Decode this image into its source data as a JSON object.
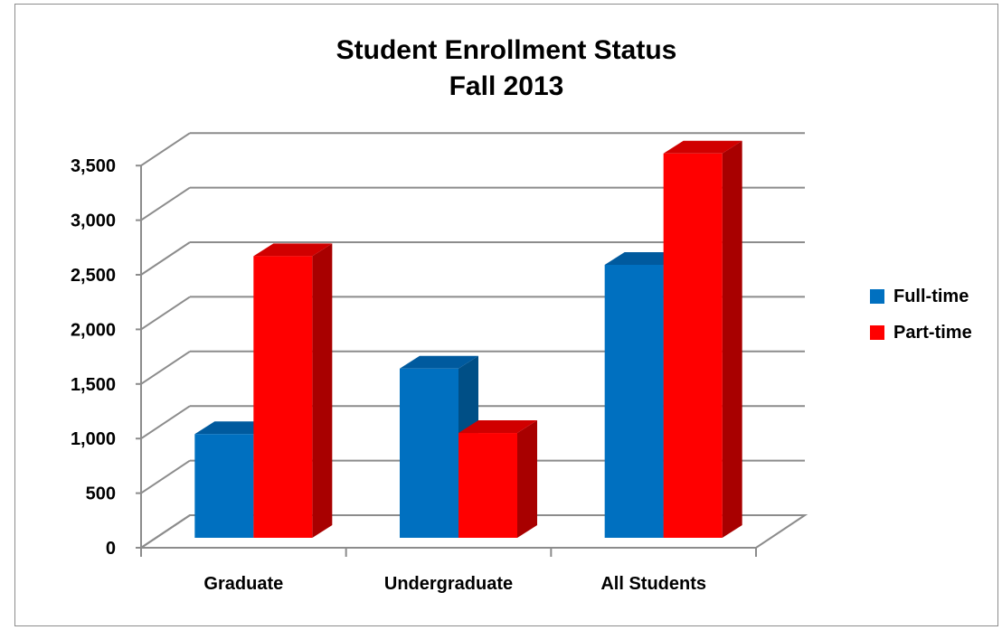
{
  "chart_data": {
    "type": "bar",
    "title": "Student Enrollment Status",
    "subtitle": "Fall 2013",
    "xlabel": "",
    "ylabel": "",
    "categories": [
      "Graduate",
      "Undergraduate",
      "All Students"
    ],
    "series": [
      {
        "name": "Full-time",
        "values": [
          950,
          1550,
          2500
        ],
        "color": "#0070c0",
        "top_color": "#005a9e",
        "side_color": "#004f86"
      },
      {
        "name": "Part-time",
        "values": [
          2580,
          960,
          3520
        ],
        "color": "#ff0000",
        "top_color": "#d00000",
        "side_color": "#a80000"
      }
    ],
    "ylim": [
      0,
      3500
    ],
    "y_ticks": [
      "0",
      "500",
      "1,000",
      "1,500",
      "2,000",
      "2,500",
      "3,000",
      "3,500"
    ],
    "grid": true,
    "legend_position": "right",
    "style": "3d-clustered-column"
  }
}
